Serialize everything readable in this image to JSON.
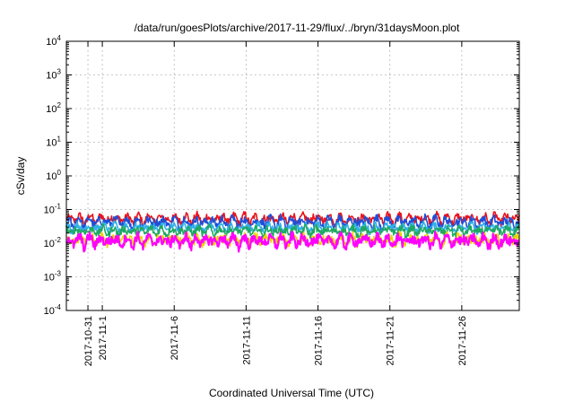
{
  "chart_data": {
    "type": "line",
    "title": "/data/run/goesPlots/archive/2017-11-29/flux/../bryn/31daysMoon.plot",
    "xlabel": "Coordinated Universal Time (UTC)",
    "ylabel": "cSv/day",
    "y_scale": "log",
    "ylim": [
      0.0001,
      10000
    ],
    "y_ticks": [
      {
        "value": 0.0001,
        "base": "10",
        "exp": "-4"
      },
      {
        "value": 0.001,
        "base": "10",
        "exp": "-3"
      },
      {
        "value": 0.01,
        "base": "10",
        "exp": "-2"
      },
      {
        "value": 0.1,
        "base": "10",
        "exp": "-1"
      },
      {
        "value": 1,
        "base": "10",
        "exp": "0"
      },
      {
        "value": 10,
        "base": "10",
        "exp": "1"
      },
      {
        "value": 100,
        "base": "10",
        "exp": "2"
      },
      {
        "value": 1000,
        "base": "10",
        "exp": "3"
      },
      {
        "value": 10000,
        "base": "10",
        "exp": "4"
      }
    ],
    "xlim": [
      "2017-10-29T12:00",
      "2017-11-30T00:00"
    ],
    "x_ticks": [
      {
        "value": "2017-10-31",
        "label": "2017-10-31"
      },
      {
        "value": "2017-11-01",
        "label": "2017-11-1"
      },
      {
        "value": "2017-11-06",
        "label": "2017-11-6"
      },
      {
        "value": "2017-11-11",
        "label": "2017-11-11"
      },
      {
        "value": "2017-11-16",
        "label": "2017-11-16"
      },
      {
        "value": "2017-11-21",
        "label": "2017-11-21"
      },
      {
        "value": "2017-11-26",
        "label": "2017-11-26"
      }
    ],
    "grid": true,
    "series": [
      {
        "color": "#e8141c",
        "base": 0.05,
        "amp": 0.035,
        "jitter": 0.25
      },
      {
        "color": "#1f4fd8",
        "base": 0.04,
        "amp": 0.03,
        "jitter": 0.28
      },
      {
        "color": "#2fb0e8",
        "base": 0.028,
        "amp": 0.015,
        "jitter": 0.22
      },
      {
        "color": "#20a860",
        "base": 0.022,
        "amp": 0.012,
        "jitter": 0.25
      },
      {
        "color": "#f0d000",
        "base": 0.012,
        "amp": 0.008,
        "jitter": 0.3
      },
      {
        "color": "#ff00ff",
        "base": 0.011,
        "amp": 0.009,
        "jitter": 0.32
      }
    ]
  }
}
